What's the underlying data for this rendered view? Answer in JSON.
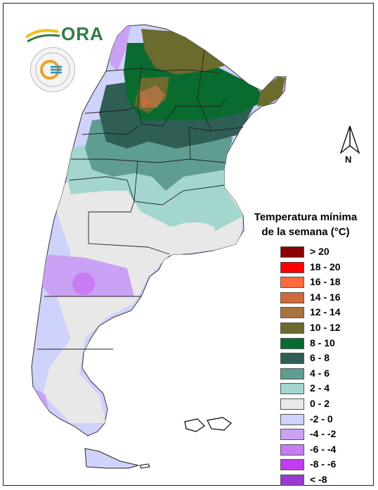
{
  "legend": {
    "title_line1": "Temperatura mínima",
    "title_line2": "de la semana (°C)",
    "items": [
      {
        "label": "> 20",
        "color": "#8b0000"
      },
      {
        "label": "18 - 20",
        "color": "#ff0000"
      },
      {
        "label": "16 - 18",
        "color": "#ff6a3d"
      },
      {
        "label": "14 - 16",
        "color": "#d06a3a"
      },
      {
        "label": "12 - 14",
        "color": "#a8733e"
      },
      {
        "label": "10 - 12",
        "color": "#6b6b2e"
      },
      {
        "label": "8 - 10",
        "color": "#0a6b2e"
      },
      {
        "label": "6 - 8",
        "color": "#2f5e55"
      },
      {
        "label": "4 - 6",
        "color": "#5f9c91"
      },
      {
        "label": "2 - 4",
        "color": "#a3d6cf"
      },
      {
        "label": "0 - 2",
        "color": "#e8e8e8"
      },
      {
        "label": "-2 - 0",
        "color": "#cfd3fb"
      },
      {
        "label": "-4 - -2",
        "color": "#c9a1f5"
      },
      {
        "label": "-6 - -4",
        "color": "#c77cf1"
      },
      {
        "label": "-8 - -6",
        "color": "#c23bef"
      },
      {
        "label": "< -8",
        "color": "#9a3ad1"
      }
    ]
  },
  "north_label": "N",
  "logos": {
    "ora_text": "ORA",
    "smn_icon": "smn-seal-icon"
  }
}
